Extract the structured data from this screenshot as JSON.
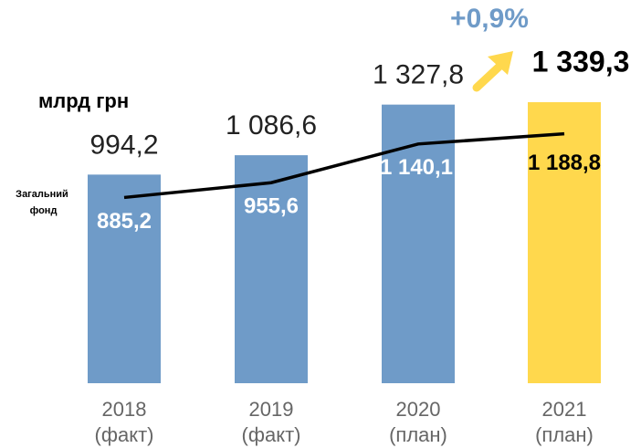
{
  "chart_data": {
    "type": "bar_line",
    "unit_label": "млрд грн",
    "categories": [
      "2018",
      "2019",
      "2020",
      "2021"
    ],
    "periods": [
      "(факт)",
      "(факт)",
      "(план)",
      "(план)"
    ],
    "bar_series": {
      "values": [
        994.2,
        1086.6,
        1327.8,
        1339.3
      ],
      "value_labels": [
        "994,2",
        "1 086,6",
        "1 327,8",
        "1 339,3"
      ],
      "colors": [
        "#6f9bc8",
        "#6f9bc8",
        "#6f9bc8",
        "#ffd84d"
      ]
    },
    "line_series": {
      "name": "Загальний фонд",
      "color": "#000000",
      "values": [
        885.2,
        955.6,
        1140.1,
        1188.8
      ],
      "value_labels": [
        "885,2",
        "955,6",
        "1 140,1",
        "1 188,8"
      ]
    },
    "annotation": "+0,9%"
  }
}
